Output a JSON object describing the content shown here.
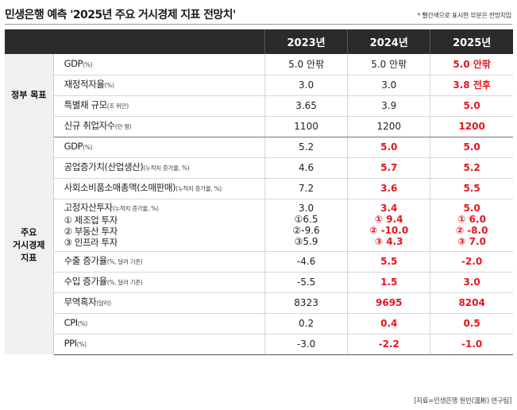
{
  "title": "민생은행 예측 '2025년 주요 거시경제 지표 전망치'",
  "note": "* 빨간색으로 표시한 부분은 전망치임",
  "source": "[자료=민생은행 원빈(溫彬) 연구팀]",
  "header": {
    "blank": "",
    "years": [
      "2023년",
      "2024년",
      "2025년"
    ]
  },
  "groups": {
    "gov": "정부 목표",
    "macro": [
      "주요",
      "거시경제",
      "지표"
    ]
  },
  "gov_rows": [
    {
      "label": "GDP",
      "unit": "(%)",
      "values": [
        "5.0 안팎",
        "5.0 안팎",
        "5.0 안팎"
      ]
    },
    {
      "label": "재정적자율",
      "unit": "(%)",
      "values": [
        "3.0",
        "3.0",
        "3.8 전후"
      ]
    },
    {
      "label": "특별채 규모",
      "unit": "(조 위안)",
      "values": [
        "3.65",
        "3.9",
        "5.0"
      ]
    },
    {
      "label": "신규 취업자수",
      "unit": "(만 명)",
      "values": [
        "1100",
        "1200",
        "1200"
      ]
    }
  ],
  "macro_rows": [
    {
      "label": "GDP",
      "unit": "(%)",
      "values": [
        "5.2",
        "5.0",
        "5.0"
      ]
    },
    {
      "label": "공업증가치(산업생산)",
      "unit": "(누적치 증가율, %)",
      "values": [
        "4.6",
        "5.7",
        "5.2"
      ]
    },
    {
      "label": "사회소비품소매총액(소매판매)",
      "unit": "(누적치 증가율, %)",
      "values": [
        "7.2",
        "3.6",
        "5.5"
      ]
    }
  ],
  "investment": {
    "label": "고정자산투자",
    "unit": "(누적치 증가율, %)",
    "subs": [
      "① 제조업 투자",
      "② 부동산 투자",
      "③ 인프라 투자"
    ],
    "values": [
      [
        "3.0",
        "①6.5",
        "②-9.6",
        "③5.9"
      ],
      [
        "3.4",
        "① 9.4",
        "② -10.0",
        "③ 4.3"
      ],
      [
        "5.0",
        "① 6.0",
        "② -8.0",
        "③ 7.0"
      ]
    ]
  },
  "macro_rows2": [
    {
      "label": "수출 증가율",
      "unit": "(%, 달러 기준)",
      "values": [
        "-4.6",
        "5.5",
        "-2.0"
      ]
    },
    {
      "label": "수입 증가율",
      "unit": "(%, 달러 기준)",
      "values": [
        "-5.5",
        "1.5",
        "3.0"
      ]
    },
    {
      "label": "무역흑자",
      "unit": "(달러)",
      "values": [
        "8323",
        "9695",
        "8204"
      ]
    },
    {
      "label": "CPI",
      "unit": "(%)",
      "values": [
        "0.2",
        "0.4",
        "0.5"
      ]
    },
    {
      "label": "PPI",
      "unit": "(%)",
      "values": [
        "-3.0",
        "-2.2",
        "-1.0"
      ]
    }
  ],
  "colors": {
    "header_bg": "#2b2b2b",
    "forecast_red": "#e4161d",
    "group_bg": "#f0f0f0"
  }
}
